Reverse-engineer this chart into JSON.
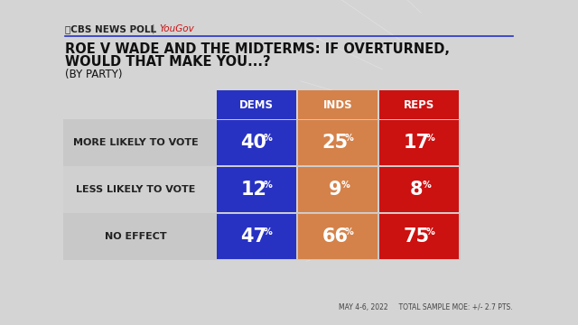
{
  "title_line1": "ROE V WADE AND THE MIDTERMS: IF OVERTURNED,",
  "title_line2": "WOULD THAT MAKE YOU...?",
  "title_line3": "(BY PARTY)",
  "source_left": "ⓈCBS NEWS POLL  |  YouGov",
  "footnote": "MAY 4-6, 2022     TOTAL SAMPLE MOE: +/- 2.7 PTS.",
  "col_headers": [
    "DEMS",
    "INDS",
    "REPS"
  ],
  "col_colors": [
    "#2832c2",
    "#d4824a",
    "#cc1111"
  ],
  "row_labels": [
    "MORE LIKELY TO VOTE",
    "LESS LIKELY TO VOTE",
    "NO EFFECT"
  ],
  "data": [
    [
      40,
      25,
      17
    ],
    [
      12,
      9,
      8
    ],
    [
      47,
      66,
      75
    ]
  ],
  "bg_color": "#d8d8d8",
  "outer_bg": "#e0e0e0",
  "row_bg": "#c8c8c8",
  "header_text_color": "#ffffff",
  "data_text_color": "#ffffff",
  "row_label_color": "#222222",
  "title_color": "#111111",
  "source_cbs_color": "#111111",
  "source_you_color": "#cc1111",
  "footnote_color": "#444444"
}
